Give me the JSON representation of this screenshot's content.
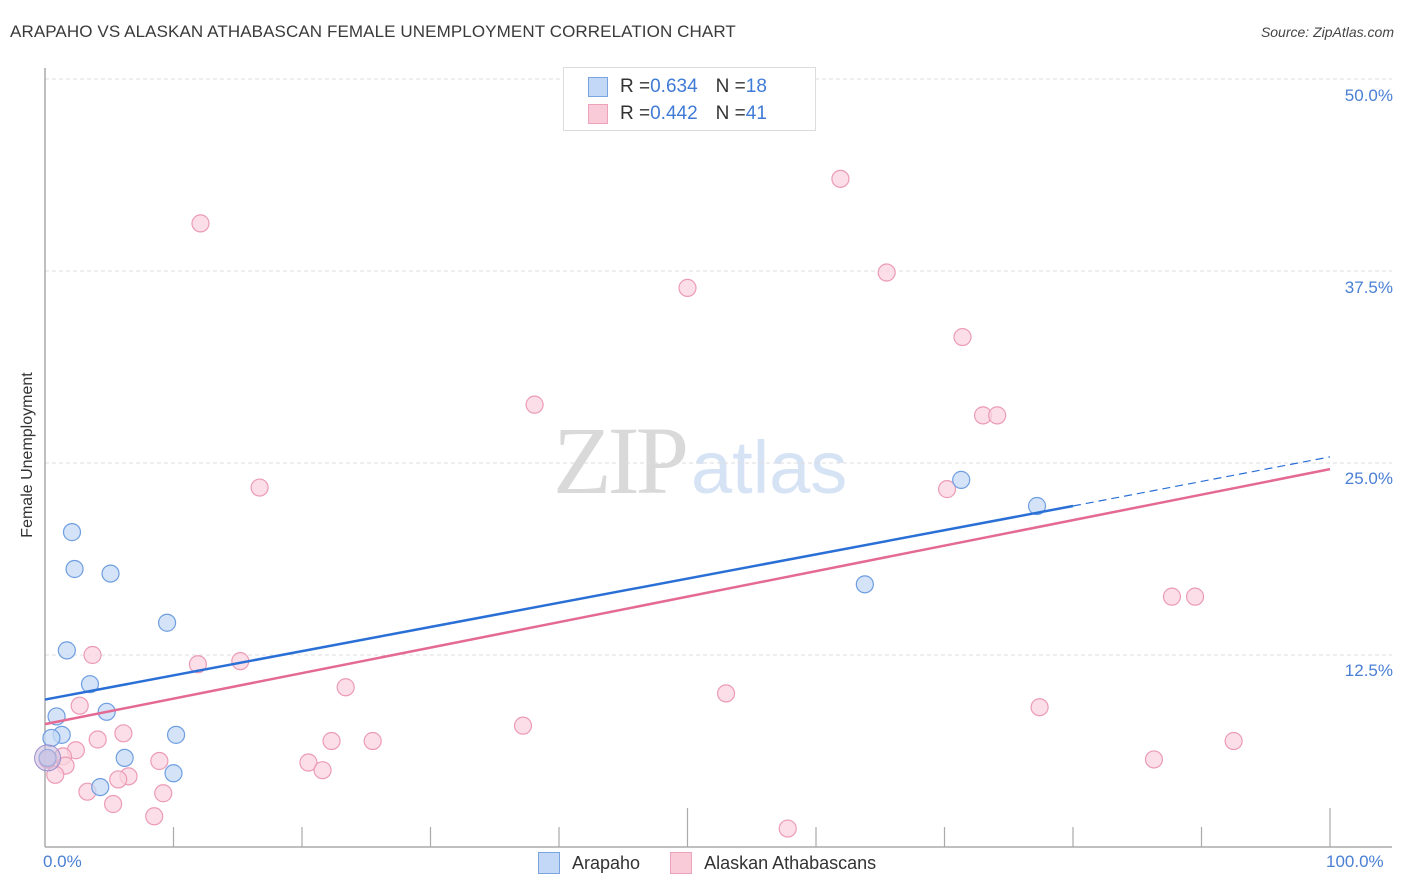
{
  "header": {
    "title": "ARAPAHO VS ALASKAN ATHABASCAN FEMALE UNEMPLOYMENT CORRELATION CHART",
    "source": "Source: ZipAtlas.com"
  },
  "axes": {
    "ylabel": "Female Unemployment",
    "y_ticks": [
      "50.0%",
      "37.5%",
      "25.0%",
      "12.5%"
    ],
    "x_ticks": [
      "0.0%",
      "100.0%"
    ]
  },
  "legend_top": {
    "rows": [
      {
        "r_label": "R = ",
        "r_value": "0.634",
        "n_label": "N = ",
        "n_value": "18",
        "color": "#aecbf2"
      },
      {
        "r_label": "R = ",
        "r_value": "0.442",
        "n_label": "N = ",
        "n_value": "41",
        "color": "#f7bfd0"
      }
    ]
  },
  "legend_bottom": {
    "items": [
      {
        "label": "Arapaho",
        "color": "#aecbf2",
        "border": "#7aa5e0"
      },
      {
        "label": "Alaskan Athabascans",
        "color": "#f7c6d4",
        "border": "#eb9ab4"
      }
    ]
  },
  "watermark": {
    "zip": "ZIP",
    "atlas": "atlas"
  },
  "colors": {
    "arapaho_fill": "#c5daf5",
    "arapaho_stroke": "#6e9ee0",
    "arapaho_line": "#2a6fd6",
    "athabascan_fill": "#f9d3df",
    "athabascan_stroke": "#ec9bb5",
    "athabascan_line": "#e46a94",
    "grid": "#dddddd",
    "axis": "#aaaaaa",
    "tick_label": "#4a7fd4"
  },
  "chart_data": {
    "type": "scatter",
    "title": "ARAPAHO VS ALASKAN ATHABASCAN FEMALE UNEMPLOYMENT CORRELATION CHART",
    "xlabel": "",
    "ylabel": "Female Unemployment",
    "xlim": [
      0,
      100
    ],
    "ylim": [
      0,
      52
    ],
    "x_tick_labels": [
      "0.0%",
      "100.0%"
    ],
    "y_tick_values": [
      12.5,
      25.0,
      37.5,
      50.0
    ],
    "y_tick_labels": [
      "12.5%",
      "25.0%",
      "37.5%",
      "50.0%"
    ],
    "grid": true,
    "legend_position": "top-center and bottom",
    "series": [
      {
        "name": "Arapaho",
        "R": 0.634,
        "N": 18,
        "trendline": {
          "x0": 0,
          "y0": 9.6,
          "x1": 80,
          "y1": 22.2,
          "dashed_extension_to": [
            100,
            25.4
          ]
        },
        "points": [
          [
            2.1,
            20.5
          ],
          [
            2.3,
            18.1
          ],
          [
            5.1,
            17.8
          ],
          [
            9.5,
            14.6
          ],
          [
            1.7,
            12.8
          ],
          [
            3.5,
            10.6
          ],
          [
            0.9,
            8.5
          ],
          [
            4.8,
            8.8
          ],
          [
            1.3,
            7.3
          ],
          [
            0.5,
            7.1
          ],
          [
            10.2,
            7.3
          ],
          [
            6.2,
            5.8
          ],
          [
            0.2,
            5.8
          ],
          [
            10.0,
            4.8
          ],
          [
            4.3,
            3.9
          ],
          [
            63.8,
            17.1
          ],
          [
            71.3,
            23.9
          ],
          [
            77.2,
            22.2
          ]
        ]
      },
      {
        "name": "Alaskan Athabascans",
        "R": 0.442,
        "N": 41,
        "trendline": {
          "x0": 0,
          "y0": 8.0,
          "x1": 100,
          "y1": 24.6
        },
        "points": [
          [
            12.1,
            40.6
          ],
          [
            61.9,
            43.5
          ],
          [
            65.5,
            37.4
          ],
          [
            50.0,
            36.4
          ],
          [
            71.4,
            33.2
          ],
          [
            38.1,
            28.8
          ],
          [
            73.0,
            28.1
          ],
          [
            74.1,
            28.1
          ],
          [
            16.7,
            23.4
          ],
          [
            70.2,
            23.3
          ],
          [
            87.7,
            16.3
          ],
          [
            89.5,
            16.3
          ],
          [
            3.7,
            12.5
          ],
          [
            11.9,
            11.9
          ],
          [
            15.2,
            12.1
          ],
          [
            23.4,
            10.4
          ],
          [
            53.0,
            10.0
          ],
          [
            77.4,
            9.1
          ],
          [
            2.7,
            9.2
          ],
          [
            37.2,
            7.9
          ],
          [
            6.1,
            7.4
          ],
          [
            4.1,
            7.0
          ],
          [
            22.3,
            6.9
          ],
          [
            25.5,
            6.9
          ],
          [
            92.5,
            6.9
          ],
          [
            2.4,
            6.3
          ],
          [
            1.4,
            5.9
          ],
          [
            8.9,
            5.6
          ],
          [
            20.5,
            5.5
          ],
          [
            86.3,
            5.7
          ],
          [
            1.6,
            5.3
          ],
          [
            21.6,
            5.0
          ],
          [
            6.5,
            4.6
          ],
          [
            5.7,
            4.4
          ],
          [
            0.8,
            4.7
          ],
          [
            3.3,
            3.6
          ],
          [
            9.2,
            3.5
          ],
          [
            5.3,
            2.8
          ],
          [
            8.5,
            2.0
          ],
          [
            57.8,
            1.2
          ],
          [
            0.2,
            5.7
          ]
        ]
      }
    ]
  }
}
